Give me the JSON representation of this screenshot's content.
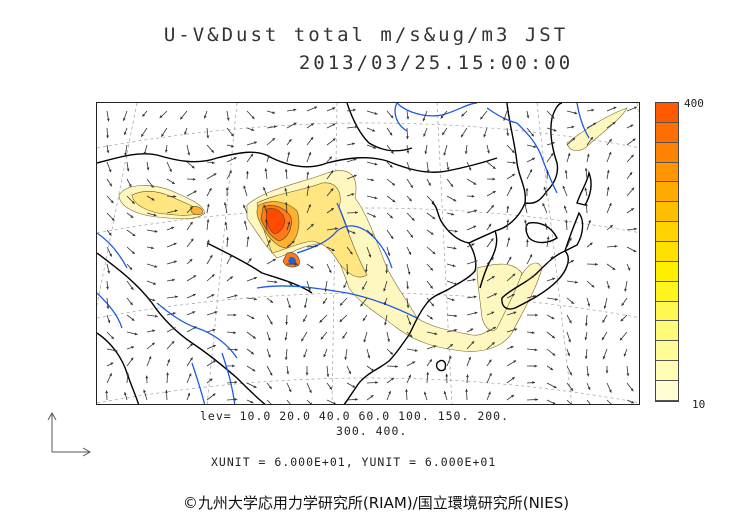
{
  "header": {
    "title_line1": "U-V&Dust total m/s&ug/m3 JST",
    "title_line2": "2013/03/25.15:00:00"
  },
  "colorbar": {
    "max_label": "400",
    "min_label": "10",
    "colors": [
      "#ff5a00",
      "#ff6e00",
      "#ff8200",
      "#ff9600",
      "#ffaa00",
      "#ffbe00",
      "#ffd200",
      "#ffe000",
      "#ffee00",
      "#fff41e",
      "#fff850",
      "#fffa78",
      "#fffb96",
      "#fffcb4",
      "#fffdd2"
    ]
  },
  "levels": {
    "line1": "lev= 10.0 20.0 40.0 60.0 100. 150. 200.",
    "line2": "300. 400."
  },
  "units": {
    "text": "XUNIT = 6.000E+01, YUNIT = 6.000E+01"
  },
  "credit": {
    "text": "©九州大学応用力学研究所(RIAM)/国立環境研究所(NIES)"
  },
  "map": {
    "coast_color": "#000000",
    "river_color": "#1a5ae6",
    "dust_light": "#fff7c0",
    "dust_mid": "#ffe680",
    "dust_high": "#ff7a1a",
    "dust_peak": "#ff4a00"
  }
}
